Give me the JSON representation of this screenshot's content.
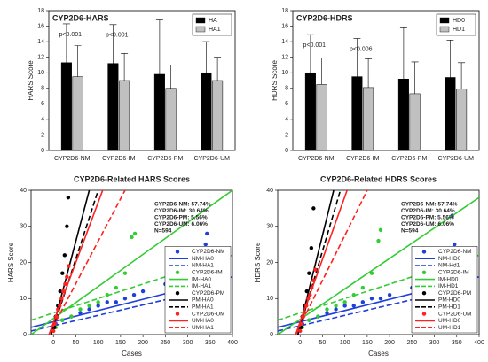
{
  "chart_data": [
    {
      "type": "bar",
      "title": "CYP2D6-HARS",
      "ylabel": "HARS Score",
      "categories": [
        "CYP2D6-NM",
        "CYP2D6-IM",
        "CYP2D6-PM",
        "CYP2D6-UM"
      ],
      "series": [
        {
          "name": "HA",
          "color": "#000000",
          "values": [
            11.3,
            11.2,
            9.8,
            10.0
          ],
          "errors": [
            5.0,
            5.0,
            7.0,
            4.0
          ]
        },
        {
          "name": "HA1",
          "color": "#c0c0c0",
          "values": [
            9.5,
            9.0,
            8.0,
            9.0
          ],
          "errors": [
            4.0,
            3.5,
            3.0,
            3.0
          ]
        }
      ],
      "annotations": [
        "p<0.001",
        "p<0.001",
        null,
        null
      ],
      "ylim": [
        0,
        18
      ],
      "yticks": [
        0,
        2,
        4,
        6,
        8,
        10,
        12,
        14,
        16,
        18
      ],
      "legend": "upper right"
    },
    {
      "type": "bar",
      "title": "CYP2D6-HDRS",
      "ylabel": "HDRS Score",
      "categories": [
        "CYP2D6-NM",
        "CYP2D6-IM",
        "CYP2D6-PM",
        "CYP2D6-UM"
      ],
      "series": [
        {
          "name": "HD0",
          "color": "#000000",
          "values": [
            10.0,
            9.5,
            9.2,
            9.4
          ],
          "errors": [
            4.9,
            4.9,
            6.6,
            4.8
          ]
        },
        {
          "name": "HD1",
          "color": "#c0c0c0",
          "values": [
            8.5,
            8.1,
            7.3,
            7.9
          ],
          "errors": [
            3.4,
            3.7,
            4.1,
            3.4
          ]
        }
      ],
      "annotations": [
        "p<0.001",
        "p<0.006",
        null,
        null
      ],
      "ylim": [
        0,
        18
      ],
      "yticks": [
        0,
        2,
        4,
        6,
        8,
        10,
        12,
        14,
        16,
        18
      ],
      "legend": "upper right"
    },
    {
      "type": "scatter",
      "title": "CYP2D6-Related HARS Scores",
      "xlabel": "Cases",
      "ylabel": "HARS Score",
      "annotations": [
        "CYP2D6-NM: 57.74%",
        "CYP2D6-IM: 30.64%",
        "CYP2D6-PM: 5.56%",
        "CYP2D6-UM: 6.06%",
        "N=594"
      ],
      "xlim": [
        -50,
        400
      ],
      "xticks": [
        0,
        50,
        100,
        150,
        200,
        250,
        300,
        350,
        400
      ],
      "ylim": [
        0,
        40
      ],
      "yticks": [
        0,
        10,
        20,
        30,
        40
      ],
      "legend": "lower right",
      "series": [
        {
          "name": "CYP2D6-NM",
          "color": "#1f3fd8",
          "style": "dots",
          "x": [
            5,
            20,
            40,
            60,
            80,
            100,
            120,
            140,
            160,
            180,
            200,
            250,
            300,
            340,
            343
          ],
          "values": [
            3,
            4,
            5,
            6,
            7,
            8,
            9,
            9,
            10,
            11,
            12,
            14,
            15,
            25,
            28
          ]
        },
        {
          "name": "NM-HA0",
          "color": "#1f3fd8",
          "style": "solid",
          "x": [
            -50,
            400
          ],
          "values": [
            2,
            16
          ]
        },
        {
          "name": "NM-HA1",
          "color": "#1f3fd8",
          "style": "dashed",
          "x": [
            -50,
            400
          ],
          "values": [
            1,
            14
          ]
        },
        {
          "name": "CYP2D6-IM",
          "color": "#33cc33",
          "style": "dots",
          "x": [
            5,
            20,
            40,
            60,
            80,
            100,
            120,
            140,
            160,
            175,
            182
          ],
          "values": [
            2,
            4,
            5,
            7,
            8,
            9,
            11,
            13,
            17,
            27,
            28
          ]
        },
        {
          "name": "IM-HA0",
          "color": "#33cc33",
          "style": "solid",
          "x": [
            -50,
            400
          ],
          "values": [
            0,
            40
          ]
        },
        {
          "name": "IM-HA1",
          "color": "#33cc33",
          "style": "dashed",
          "x": [
            -50,
            400
          ],
          "values": [
            4,
            22
          ]
        },
        {
          "name": "CYP2D6-PM",
          "color": "#000000",
          "style": "dots",
          "x": [
            2,
            5,
            10,
            15,
            20,
            25,
            30,
            33
          ],
          "values": [
            2,
            5,
            8,
            12,
            17,
            22,
            30,
            38
          ]
        },
        {
          "name": "PM-HA0",
          "color": "#000000",
          "style": "solid",
          "x": [
            -5,
            80
          ],
          "values": [
            0,
            40
          ]
        },
        {
          "name": "PM-HA1",
          "color": "#000000",
          "style": "dashed",
          "x": [
            -5,
            100
          ],
          "values": [
            0,
            40
          ]
        },
        {
          "name": "CYP2D6-UM",
          "color": "#ff2020",
          "style": "dots",
          "x": [
            0,
            3,
            6,
            10,
            14,
            18,
            22,
            26,
            30,
            34
          ],
          "values": [
            1,
            3,
            5,
            7,
            8,
            10,
            12,
            14,
            16,
            19
          ]
        },
        {
          "name": "UM-HA0",
          "color": "#ff2020",
          "style": "solid",
          "x": [
            -10,
            110
          ],
          "values": [
            0,
            40
          ]
        },
        {
          "name": "UM-HA1",
          "color": "#ff2020",
          "style": "dashed",
          "x": [
            -10,
            160
          ],
          "values": [
            0,
            40
          ]
        }
      ]
    },
    {
      "type": "scatter",
      "title": "CYP2D6-Related HDRS Scores",
      "xlabel": "Cases",
      "ylabel": "HDRS Score",
      "annotations": [
        "CYP2D6-NM: 57.74%",
        "CYP2D6-IM: 30.64%",
        "CYP2D6-PM: 5.56%",
        "CYP2D6-UM: 6.06%",
        "N=594"
      ],
      "xlim": [
        -50,
        400
      ],
      "xticks": [
        0,
        50,
        100,
        150,
        200,
        250,
        300,
        350,
        400
      ],
      "ylim": [
        0,
        40
      ],
      "yticks": [
        0,
        10,
        20,
        30,
        40
      ],
      "legend": "lower right",
      "series": [
        {
          "name": "CYP2D6-NM",
          "color": "#1f3fd8",
          "style": "dots",
          "x": [
            5,
            20,
            40,
            60,
            80,
            100,
            120,
            140,
            160,
            180,
            200,
            250,
            300,
            340,
            345
          ],
          "values": [
            3,
            4,
            5,
            6,
            7,
            8,
            8,
            9,
            10,
            10,
            11,
            13,
            14,
            33,
            25
          ]
        },
        {
          "name": "NM-HD0",
          "color": "#1f3fd8",
          "style": "solid",
          "x": [
            -50,
            400
          ],
          "values": [
            2,
            16
          ]
        },
        {
          "name": "NM-Hd1",
          "color": "#1f3fd8",
          "style": "dashed",
          "x": [
            -50,
            400
          ],
          "values": [
            1,
            14
          ]
        },
        {
          "name": "CYP2D6-IM",
          "color": "#33cc33",
          "style": "dots",
          "x": [
            5,
            20,
            40,
            60,
            80,
            100,
            120,
            140,
            160,
            175,
            180
          ],
          "values": [
            2,
            4,
            5,
            7,
            8,
            9,
            11,
            13,
            17,
            26,
            29
          ]
        },
        {
          "name": "IM-HD0",
          "color": "#33cc33",
          "style": "solid",
          "x": [
            -50,
            400
          ],
          "values": [
            0,
            38
          ]
        },
        {
          "name": "IM-HD1",
          "color": "#33cc33",
          "style": "dashed",
          "x": [
            -50,
            400
          ],
          "values": [
            4,
            22
          ]
        },
        {
          "name": "CYP2D6-PM",
          "color": "#000000",
          "style": "dots",
          "x": [
            2,
            5,
            10,
            15,
            20,
            25,
            30
          ],
          "values": [
            2,
            5,
            8,
            12,
            17,
            24,
            35
          ]
        },
        {
          "name": "PM-HD0",
          "color": "#000000",
          "style": "solid",
          "x": [
            -5,
            75
          ],
          "values": [
            0,
            40
          ]
        },
        {
          "name": "PM-HD1",
          "color": "#000000",
          "style": "dashed",
          "x": [
            -5,
            90
          ],
          "values": [
            0,
            40
          ]
        },
        {
          "name": "CYP2D6-UM",
          "color": "#ff2020",
          "style": "dots",
          "x": [
            0,
            3,
            6,
            10,
            14,
            18,
            22,
            26,
            30,
            34
          ],
          "values": [
            1,
            3,
            5,
            6,
            8,
            10,
            11,
            13,
            15,
            18
          ]
        },
        {
          "name": "UM-HD0",
          "color": "#ff2020",
          "style": "solid",
          "x": [
            -10,
            105
          ],
          "values": [
            0,
            40
          ]
        },
        {
          "name": "UM-HD1",
          "color": "#ff2020",
          "style": "dashed",
          "x": [
            -10,
            150
          ],
          "values": [
            0,
            40
          ]
        }
      ]
    }
  ]
}
